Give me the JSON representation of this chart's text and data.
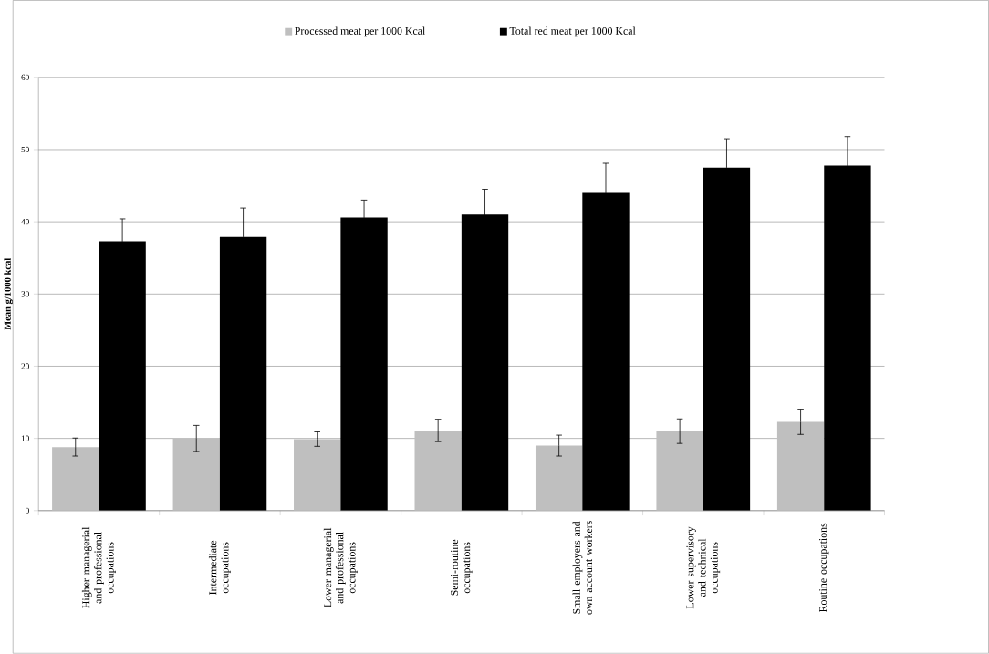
{
  "chart_data": {
    "type": "bar",
    "ylabel": "Mean g/1000 kcal",
    "categories": [
      "Higher managerial and professional occupations",
      "Intermediate occupations",
      "Lower managerial and professional occupations",
      "Semi-routine occupations",
      "Small employers and own account workers",
      "Lower supervisory and technical occupations",
      "Routine occupations"
    ],
    "series": [
      {
        "name": "Processed meat per 1000 Kcal",
        "color": "#bfbfbf",
        "values": [
          8.8,
          10.0,
          9.9,
          11.1,
          9.0,
          11.0,
          12.3
        ],
        "errors": [
          1.25,
          1.8,
          1.0,
          1.55,
          1.45,
          1.7,
          1.75
        ]
      },
      {
        "name": "Total red meat per 1000 Kcal",
        "color": "#000000",
        "values": [
          37.3,
          37.9,
          40.6,
          41.0,
          44.0,
          47.5,
          47.8
        ],
        "errors": [
          3.1,
          4.0,
          2.4,
          3.5,
          4.1,
          4.0,
          4.0
        ]
      }
    ],
    "ylim": [
      0,
      60
    ],
    "yticks": [
      0,
      10,
      20,
      30,
      40,
      50,
      60
    ],
    "grid": "y",
    "legend": "top"
  }
}
